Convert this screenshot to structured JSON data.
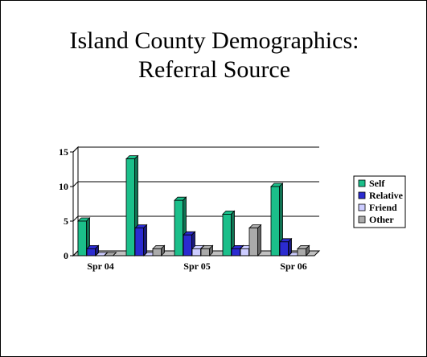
{
  "slide": {
    "title_line1": "Island County Demographics:",
    "title_line2": "Referral Source"
  },
  "chart_data": {
    "type": "bar",
    "categories": [
      "Spr 04",
      "",
      "Spr 05",
      "",
      "Spr 06"
    ],
    "series": [
      {
        "name": "Self",
        "values": [
          5,
          14,
          8,
          6,
          10
        ],
        "color": "#1bbf8a"
      },
      {
        "name": "Relative",
        "values": [
          1,
          4,
          3,
          1,
          2
        ],
        "color": "#2b2bd0"
      },
      {
        "name": "Friend",
        "values": [
          0,
          0,
          1,
          1,
          0
        ],
        "color": "#ccccff"
      },
      {
        "name": "Other",
        "values": [
          0,
          1,
          1,
          4,
          1
        ],
        "color": "#aaaaaa"
      }
    ],
    "y_ticks": [
      "0",
      "5",
      "10",
      "15"
    ],
    "ylim": [
      0,
      15
    ],
    "grid": true,
    "style": "3d-clustered-column",
    "legend_position": "right"
  }
}
